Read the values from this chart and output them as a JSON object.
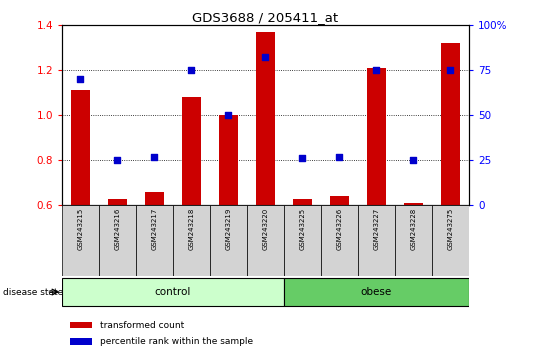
{
  "title": "GDS3688 / 205411_at",
  "samples": [
    "GSM243215",
    "GSM243216",
    "GSM243217",
    "GSM243218",
    "GSM243219",
    "GSM243220",
    "GSM243225",
    "GSM243226",
    "GSM243227",
    "GSM243228",
    "GSM243275"
  ],
  "transformed_count": [
    1.11,
    0.63,
    0.66,
    1.08,
    1.0,
    1.37,
    0.63,
    0.64,
    1.21,
    0.61,
    1.32
  ],
  "percentile_rank": [
    70,
    25,
    27,
    75,
    50,
    82,
    26,
    27,
    75,
    25,
    75
  ],
  "bar_bottom": 0.6,
  "ylim_left": [
    0.6,
    1.4
  ],
  "ylim_right": [
    0,
    100
  ],
  "yticks_left": [
    0.6,
    0.8,
    1.0,
    1.2,
    1.4
  ],
  "yticks_right": [
    0,
    25,
    50,
    75,
    100
  ],
  "ytick_labels_right": [
    "0",
    "25",
    "50",
    "75",
    "100%"
  ],
  "n_control": 6,
  "n_obese": 5,
  "bar_color": "#cc0000",
  "dot_color": "#0000cc",
  "control_color": "#ccffcc",
  "obese_color": "#66cc66",
  "sample_bg_color": "#d3d3d3",
  "bar_width": 0.5,
  "dot_size": 18,
  "grid_yticks": [
    0.8,
    1.0,
    1.2
  ]
}
